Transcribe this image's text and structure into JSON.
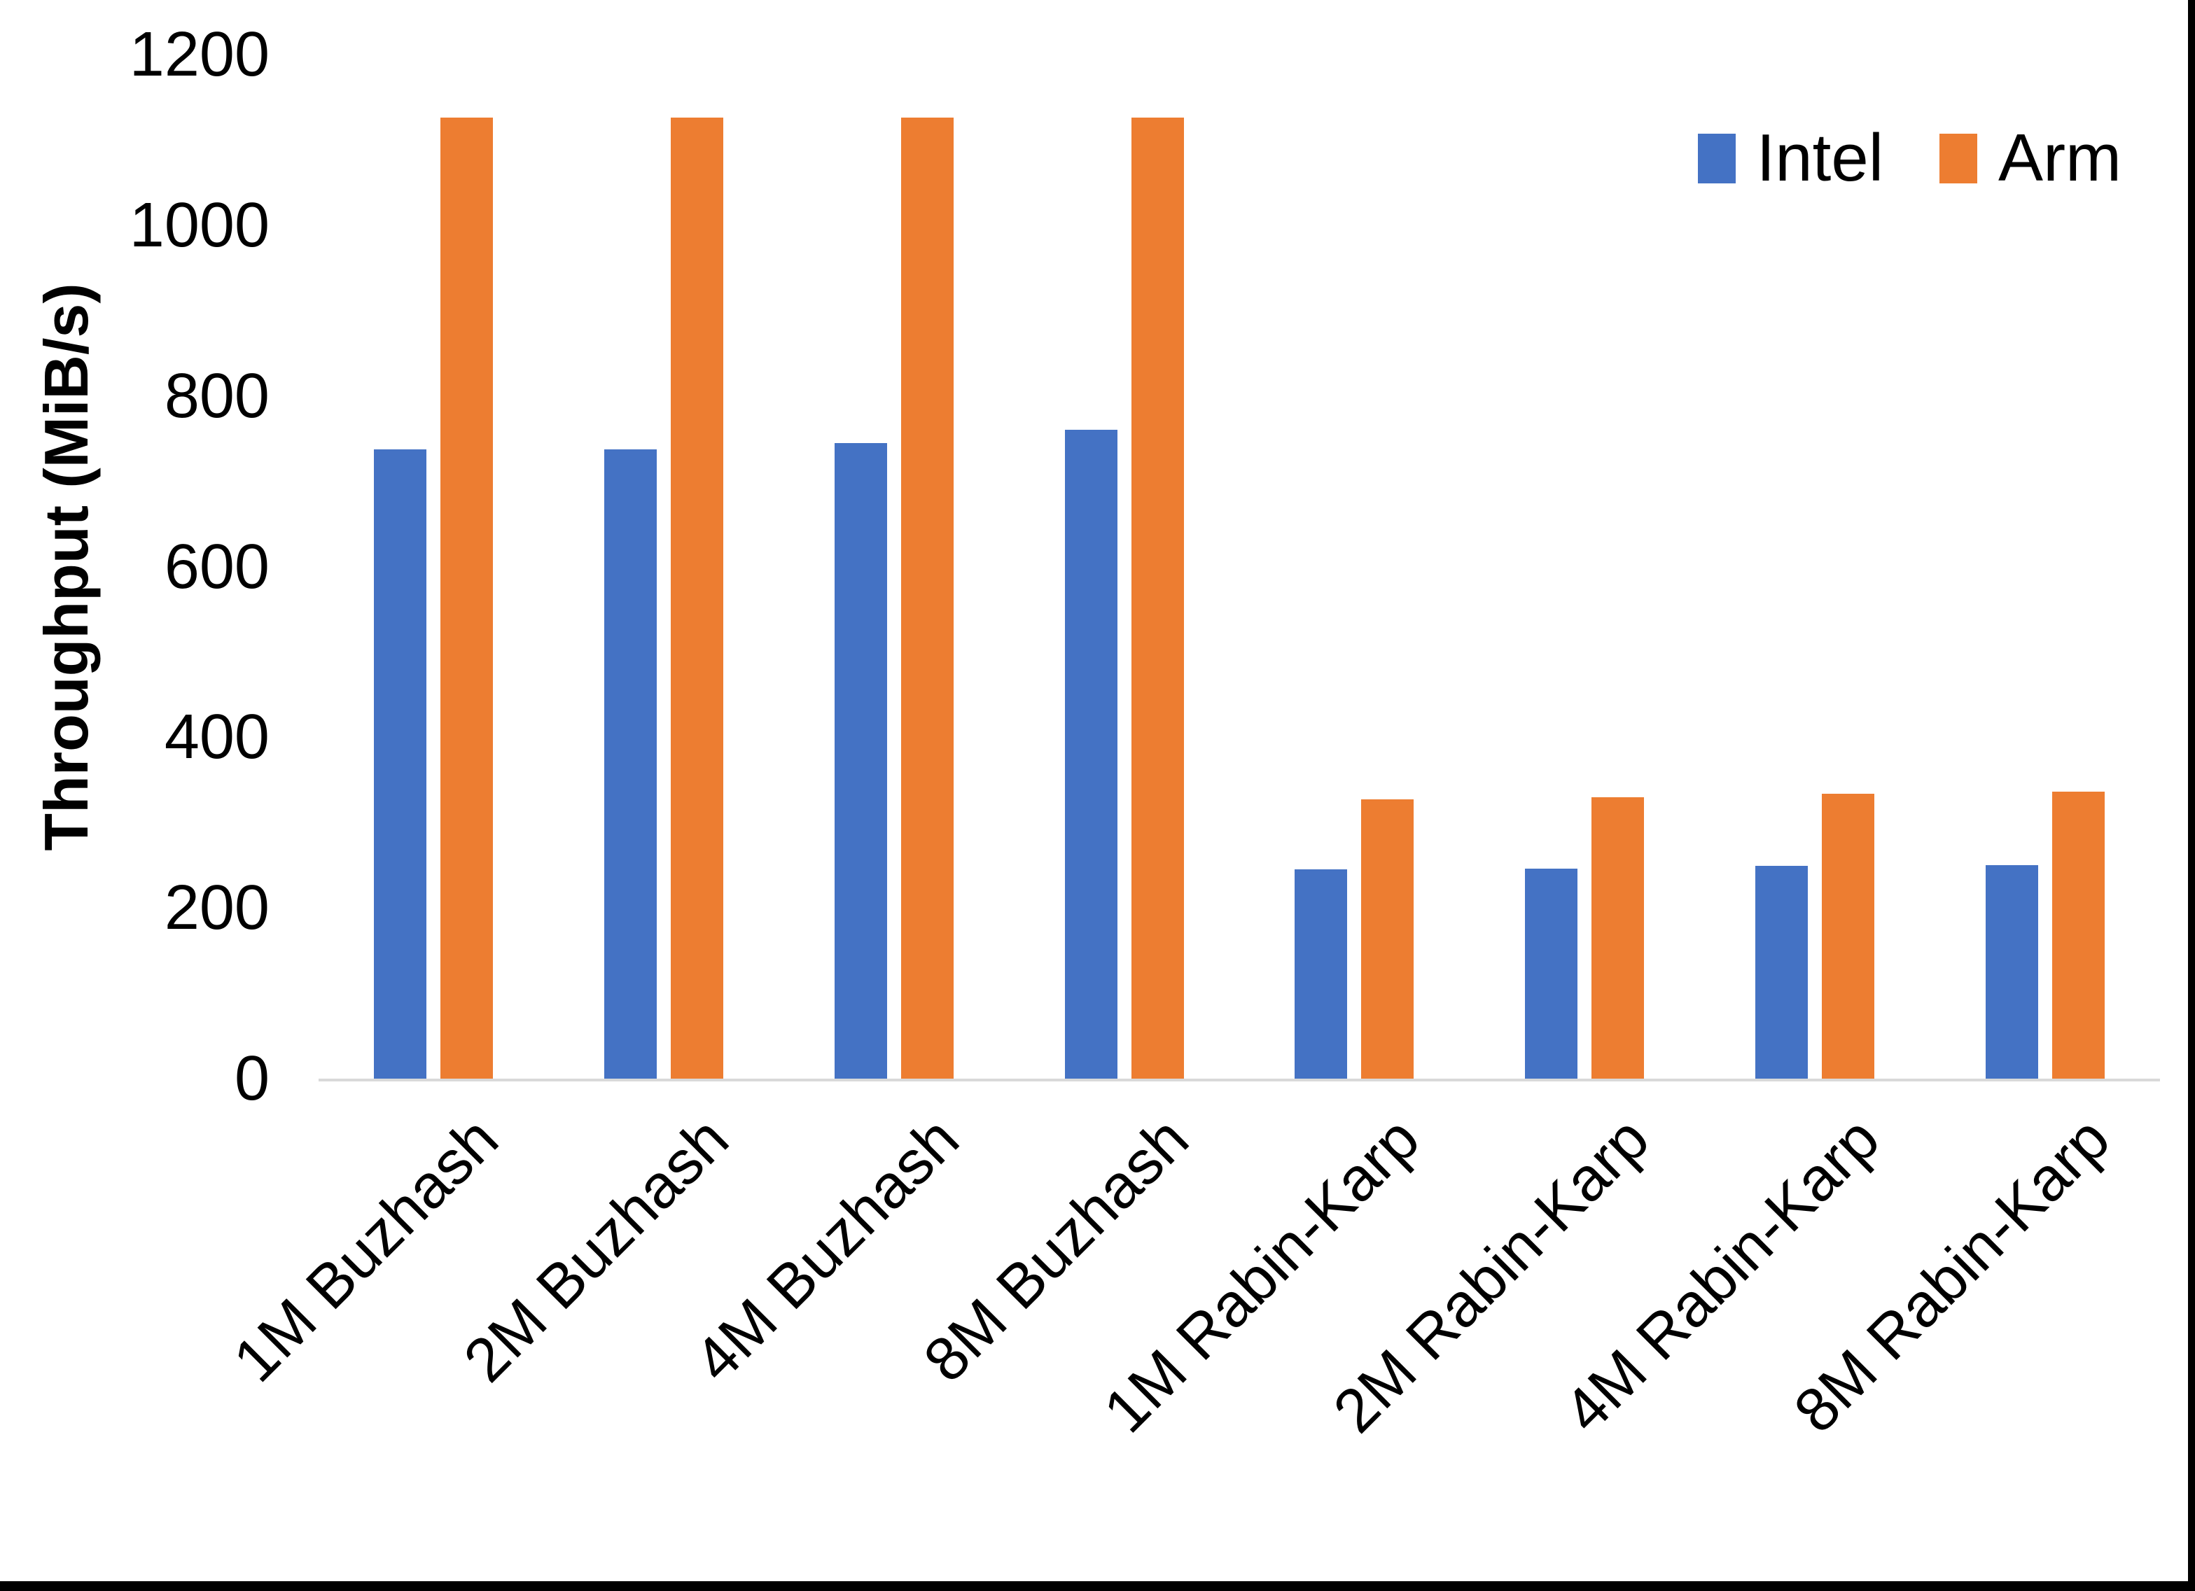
{
  "chart_data": {
    "type": "bar",
    "title": "",
    "xlabel": "",
    "ylabel": "Throughput (MiB/s)",
    "ylim": [
      0,
      1200
    ],
    "ytick_step": 200,
    "yticks": [
      0,
      200,
      400,
      600,
      800,
      1000,
      1200
    ],
    "grid": false,
    "legend_position": "top-right",
    "axis_line_color": "#D9D9D9",
    "categories": [
      "1M Buzhash",
      "2M Buzhash",
      "4M Buzhash",
      "8M Buzhash",
      "1M Rabin-Karp",
      "2M Rabin-Karp",
      "4M Rabin-Karp",
      "8M Rabin-Karp"
    ],
    "series": [
      {
        "name": "Intel",
        "color": "#4472C4",
        "values": [
          737,
          737,
          745,
          760,
          245,
          246,
          249,
          250
        ]
      },
      {
        "name": "Arm",
        "color": "#ED7D31",
        "values": [
          1126,
          1126,
          1126,
          1126,
          327,
          330,
          334,
          336
        ]
      }
    ]
  },
  "frame": {
    "color": "#000000"
  }
}
